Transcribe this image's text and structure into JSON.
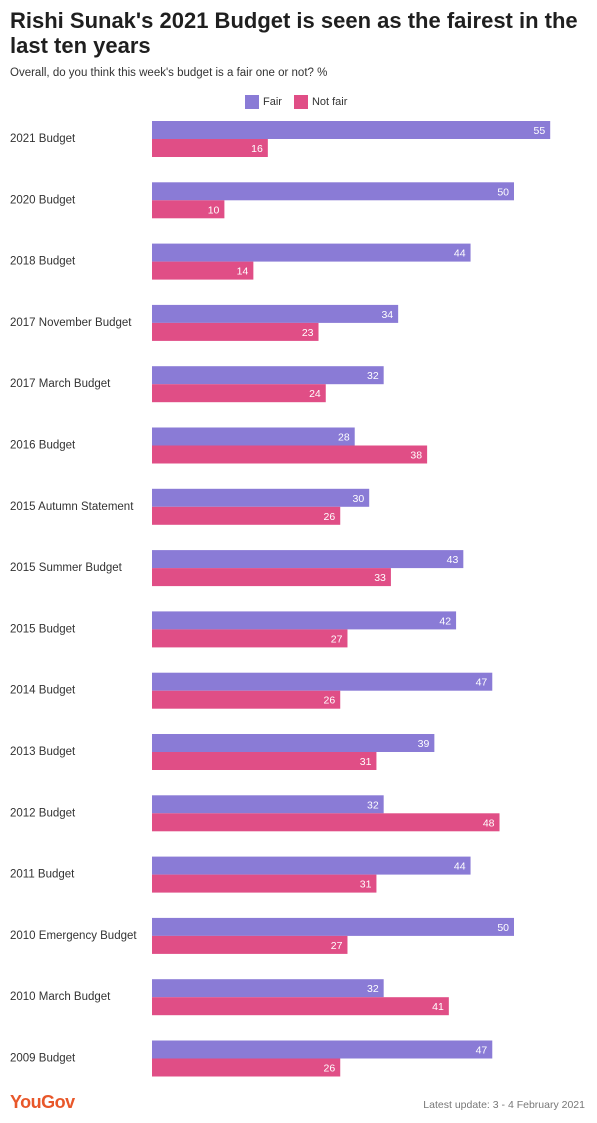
{
  "title": "Rishi Sunak's 2021 Budget is seen as the fairest in the last ten years",
  "subtitle": "Overall, do you think this week's budget is a fair one or not? %",
  "footer": {
    "logo": "YouGov",
    "update": "Latest update: 3 - 4 February 2021"
  },
  "colors": {
    "fair": "#8a7bd6",
    "not_fair": "#e04e86"
  },
  "chart_data": {
    "type": "bar",
    "orientation": "horizontal",
    "title": "Rishi Sunak's 2021 Budget is seen as the fairest in the last ten years",
    "subtitle": "Overall, do you think this week's budget is a fair one or not? %",
    "legend_position": "top",
    "grid": false,
    "xlim": [
      0,
      55
    ],
    "categories": [
      "2021 Budget",
      "2020 Budget",
      "2018 Budget",
      "2017 November Budget",
      "2017 March Budget",
      "2016 Budget",
      "2015 Autumn Statement",
      "2015 Summer Budget",
      "2015 Budget",
      "2014 Budget",
      "2013 Budget",
      "2012 Budget",
      "2011 Budget",
      "2010 Emergency Budget",
      "2010 March Budget",
      "2009 Budget"
    ],
    "series": [
      {
        "name": "Fair",
        "values": [
          55,
          50,
          44,
          34,
          32,
          28,
          30,
          43,
          42,
          47,
          39,
          32,
          44,
          50,
          32,
          47
        ]
      },
      {
        "name": "Not fair",
        "values": [
          16,
          10,
          14,
          23,
          24,
          38,
          26,
          33,
          27,
          26,
          31,
          48,
          31,
          27,
          41,
          26
        ]
      }
    ]
  }
}
